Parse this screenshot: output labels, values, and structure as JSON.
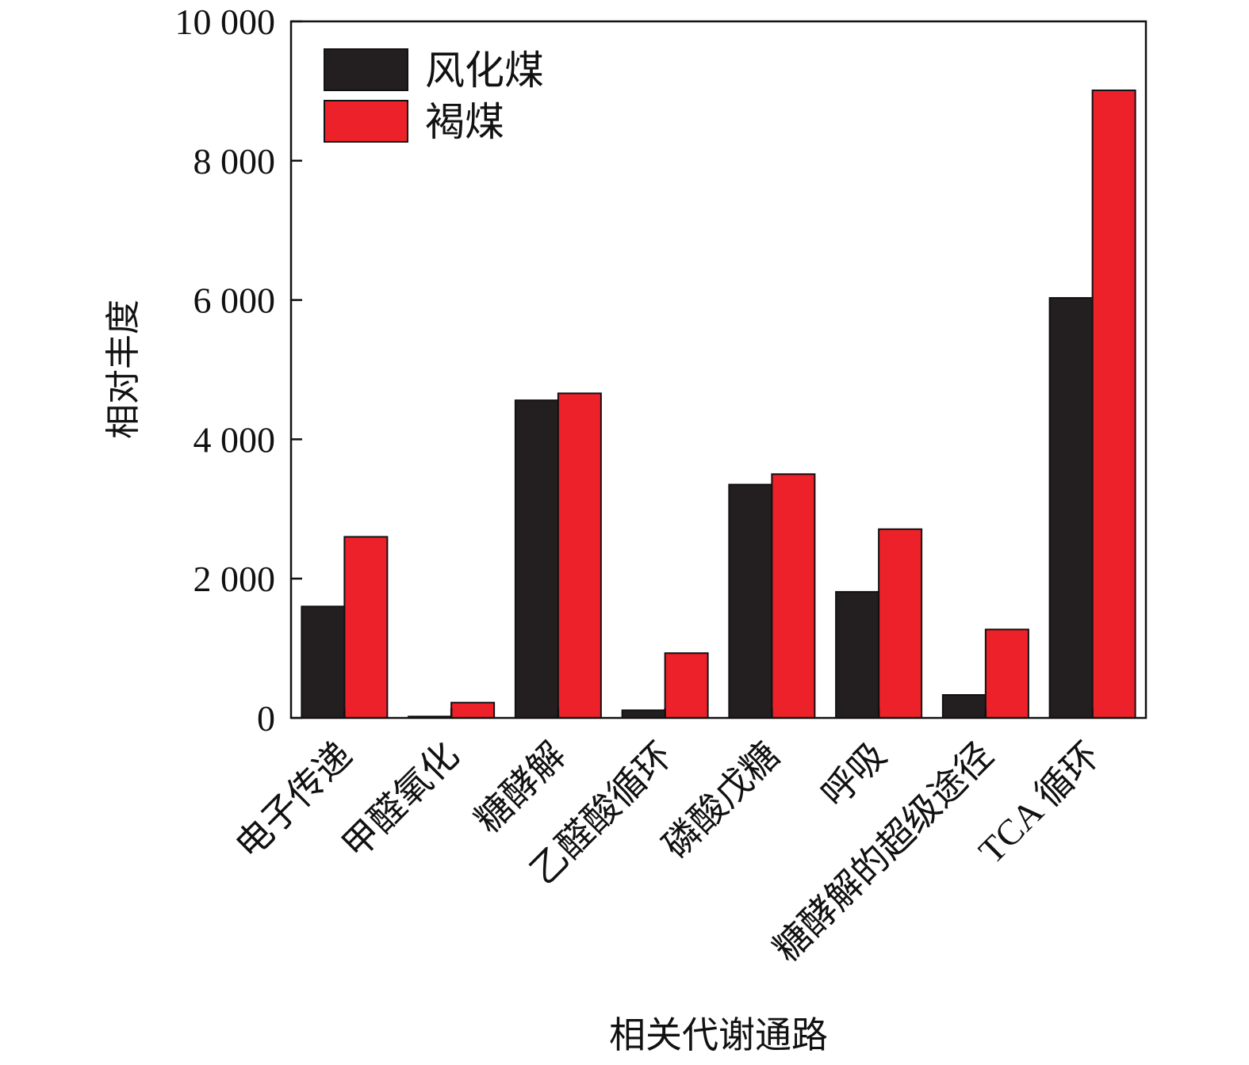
{
  "chart_data": {
    "type": "bar",
    "title": "",
    "xlabel": "相关代谢通路",
    "ylabel": "相对丰度",
    "ylim": [
      0,
      10000
    ],
    "yticks": [
      {
        "value": 0,
        "label": "0"
      },
      {
        "value": 2000,
        "label": "2 000"
      },
      {
        "value": 4000,
        "label": "4 000"
      },
      {
        "value": 6000,
        "label": "6 000"
      },
      {
        "value": 8000,
        "label": "8 000"
      },
      {
        "value": 10000,
        "label": "10 000"
      }
    ],
    "categories": [
      "电子传递",
      "甲醛氧化",
      "糖酵解",
      "乙醛酸循环",
      "磷酸戊糖",
      "呼吸",
      "糖酵解的超级途径",
      "TCA 循环"
    ],
    "series": [
      {
        "name": "风化煤",
        "color": "#231f20",
        "values": [
          1600,
          20,
          4560,
          110,
          3350,
          1810,
          330,
          6030
        ]
      },
      {
        "name": "褐煤",
        "color": "#ed2129",
        "values": [
          2600,
          220,
          4660,
          930,
          3500,
          2710,
          1270,
          9010
        ]
      }
    ],
    "legend_position": "top-left",
    "grid": false
  }
}
